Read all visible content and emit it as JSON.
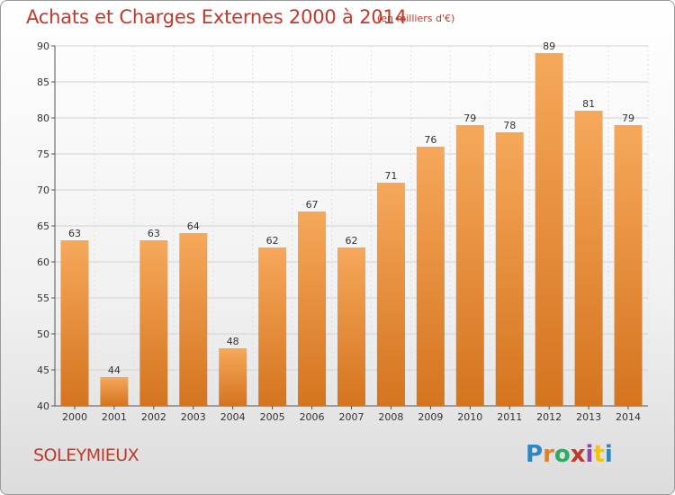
{
  "title": "Achats et Charges Externes 2000 à 2014",
  "unit": "(en milliers d'€)",
  "commune": "SOLEYMIEUX",
  "logo": {
    "letters": [
      "P",
      "r",
      "o",
      "x",
      "i",
      "t",
      "i"
    ],
    "colors": [
      "#2e86c1",
      "#e67e22",
      "#27ae60",
      "#c0392b",
      "#8e44ad",
      "#f1c40f",
      "#2e86c1"
    ]
  },
  "colors": {
    "bar_top": "#f6a85a",
    "bar_bottom": "#d4741f",
    "title": "#c0392b"
  },
  "chart_data": {
    "type": "bar",
    "title": "Achats et Charges Externes 2000 à 2014",
    "categories": [
      "2000",
      "2001",
      "2002",
      "2003",
      "2004",
      "2005",
      "2006",
      "2007",
      "2008",
      "2009",
      "2010",
      "2011",
      "2012",
      "2013",
      "2014"
    ],
    "values": [
      63,
      44,
      63,
      64,
      48,
      62,
      67,
      62,
      71,
      76,
      79,
      78,
      89,
      81,
      79
    ],
    "ylim": [
      40,
      90
    ],
    "yticks": [
      40,
      45,
      50,
      55,
      60,
      65,
      70,
      75,
      80,
      85,
      90
    ],
    "grid": true
  }
}
